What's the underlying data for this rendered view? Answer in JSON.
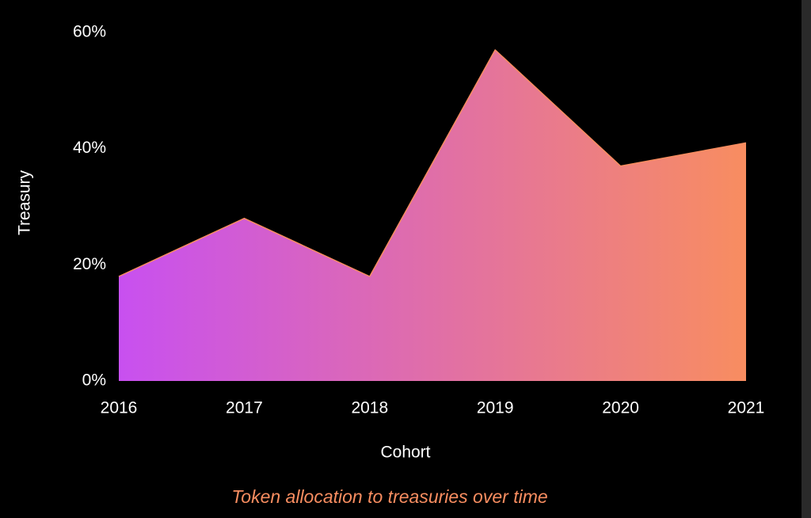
{
  "chart_data": {
    "type": "area",
    "title": "Token allocation to treasuries over time",
    "x_label": "Cohort",
    "y_label": "Treasury",
    "x": [
      2016,
      2017,
      2018,
      2019,
      2020,
      2021
    ],
    "series": [
      {
        "name": "Treasury",
        "color": [
          "#c850f0",
          "#f88d60"
        ],
        "values": [
          18,
          28,
          18,
          57,
          37,
          41
        ]
      }
    ],
    "xlim": [
      2016,
      2021
    ],
    "xticks": [
      2016,
      2017,
      2018,
      2019,
      2020,
      2021
    ],
    "ylim": [
      0,
      60
    ],
    "yticks": [
      {
        "value": 0,
        "label": "0%"
      },
      {
        "value": 20,
        "label": "20%"
      },
      {
        "value": 40,
        "label": "40%"
      },
      {
        "value": 60,
        "label": "60%"
      }
    ],
    "grid": false
  }
}
